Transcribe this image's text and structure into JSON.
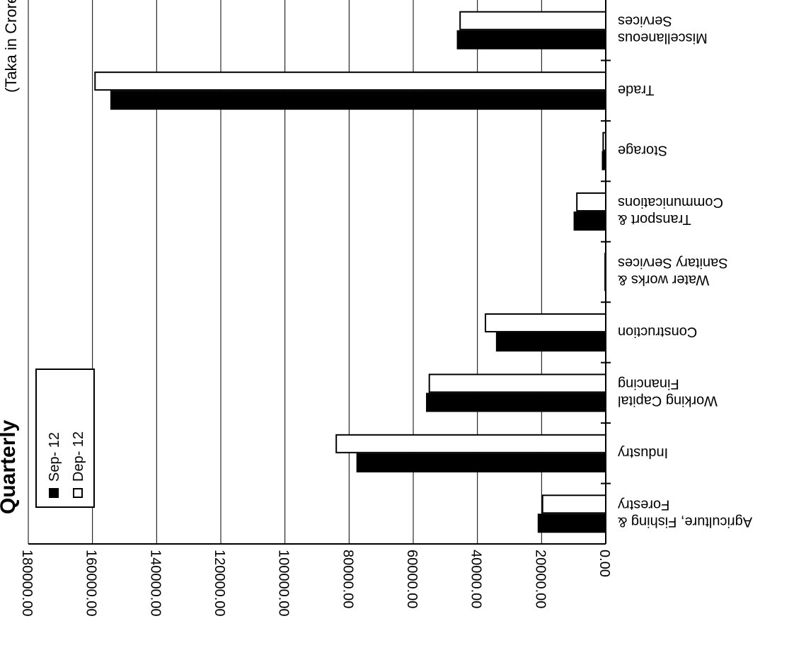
{
  "chart_data": {
    "type": "bar",
    "orientation": "horizontal",
    "title": "Quarterly",
    "subtitle": "(Taka in Crores)",
    "categories": [
      [
        "Agriculture, Fishing &",
        "Forestry"
      ],
      [
        "Industry"
      ],
      [
        "Working Capital",
        "Financing"
      ],
      [
        "Construction"
      ],
      [
        "Water works &",
        "Sanitary Services"
      ],
      [
        "Transport &",
        "Communications"
      ],
      [
        "Storage"
      ],
      [
        "Trade"
      ],
      [
        "Miscellaneous",
        "Services"
      ]
    ],
    "series": [
      {
        "name": "Sep- 12",
        "color": "#000000",
        "values": [
          21000,
          77500,
          55800,
          34000,
          200,
          9800,
          1000,
          154200,
          46200
        ]
      },
      {
        "name": "Dep- 12",
        "color": "#ffffff",
        "values": [
          19700,
          84000,
          55000,
          37500,
          200,
          9000,
          800,
          159200,
          45400
        ]
      }
    ],
    "ylim": [
      0,
      180000
    ],
    "yticks": [
      "0.00",
      "20000.00",
      "40000.00",
      "60000.00",
      "80000.00",
      "100000.00",
      "120000.00",
      "140000.00",
      "160000.00",
      "180000.00"
    ],
    "grid": true,
    "legend_position": "top-left",
    "rotation": "upside-down"
  }
}
